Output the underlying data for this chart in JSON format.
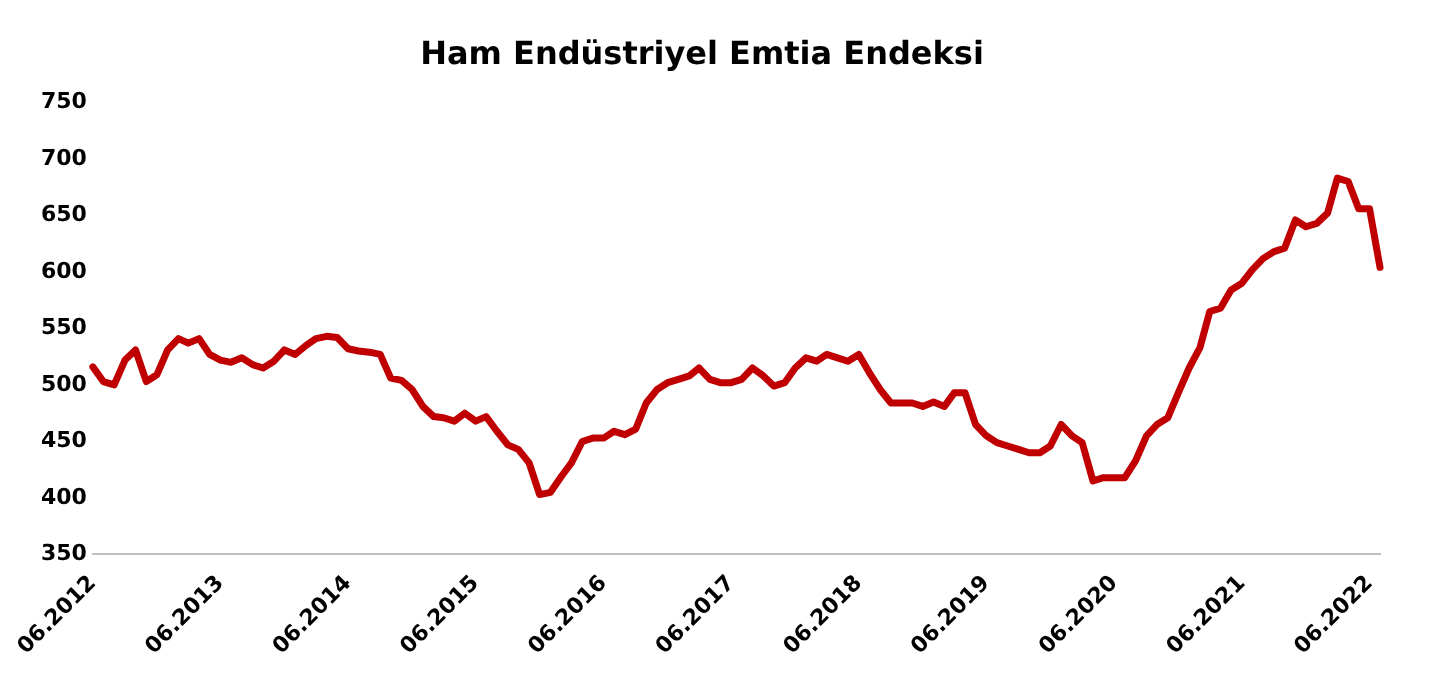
{
  "chart_data": {
    "type": "line",
    "title": "Ham Endüstriyel Emtia Endeksi",
    "x": [
      "2012-06",
      "2012-07",
      "2012-08",
      "2012-09",
      "2012-10",
      "2012-11",
      "2012-12",
      "2013-01",
      "2013-02",
      "2013-03",
      "2013-04",
      "2013-05",
      "2013-06",
      "2013-07",
      "2013-08",
      "2013-09",
      "2013-10",
      "2013-11",
      "2013-12",
      "2014-01",
      "2014-02",
      "2014-03",
      "2014-04",
      "2014-05",
      "2014-06",
      "2014-07",
      "2014-08",
      "2014-09",
      "2014-10",
      "2014-11",
      "2014-12",
      "2015-01",
      "2015-02",
      "2015-03",
      "2015-04",
      "2015-05",
      "2015-06",
      "2015-07",
      "2015-08",
      "2015-09",
      "2015-10",
      "2015-11",
      "2015-12",
      "2016-01",
      "2016-02",
      "2016-03",
      "2016-04",
      "2016-05",
      "2016-06",
      "2016-07",
      "2016-08",
      "2016-09",
      "2016-10",
      "2016-11",
      "2016-12",
      "2017-01",
      "2017-02",
      "2017-03",
      "2017-04",
      "2017-05",
      "2017-06",
      "2017-07",
      "2017-08",
      "2017-09",
      "2017-10",
      "2017-11",
      "2017-12",
      "2018-01",
      "2018-02",
      "2018-03",
      "2018-04",
      "2018-05",
      "2018-06",
      "2018-07",
      "2018-08",
      "2018-09",
      "2018-10",
      "2018-11",
      "2018-12",
      "2019-01",
      "2019-02",
      "2019-03",
      "2019-04",
      "2019-05",
      "2019-06",
      "2019-07",
      "2019-08",
      "2019-09",
      "2019-10",
      "2019-11",
      "2019-12",
      "2020-01",
      "2020-02",
      "2020-03",
      "2020-04",
      "2020-05",
      "2020-06",
      "2020-07",
      "2020-08",
      "2020-09",
      "2020-10",
      "2020-11",
      "2020-12",
      "2021-01",
      "2021-02",
      "2021-03",
      "2021-04",
      "2021-05",
      "2021-06",
      "2021-07",
      "2021-08",
      "2021-09",
      "2021-10",
      "2021-11",
      "2021-12",
      "2022-01",
      "2022-02",
      "2022-03",
      "2022-04",
      "2022-05",
      "2022-06",
      "2022-07"
    ],
    "series": [
      {
        "color": "#c00000",
        "values": [
          516,
          503,
          500,
          522,
          531,
          503,
          509,
          531,
          541,
          537,
          541,
          527,
          522,
          520,
          524,
          518,
          515,
          521,
          531,
          527,
          535,
          541,
          543,
          542,
          532,
          530,
          529,
          527,
          506,
          504,
          496,
          481,
          472,
          471,
          468,
          475,
          468,
          472,
          459,
          447,
          443,
          431,
          403,
          405,
          419,
          431,
          450,
          453,
          453,
          459,
          456,
          461,
          484,
          496,
          502,
          505,
          508,
          515,
          505,
          502,
          502,
          505,
          515,
          508,
          499,
          502,
          515,
          524,
          521,
          527,
          524,
          521,
          527,
          511,
          496,
          484,
          484,
          484,
          481,
          485,
          481,
          493,
          493,
          465,
          455,
          449,
          446,
          443,
          440,
          440,
          446,
          465,
          455,
          449,
          415,
          418,
          418,
          418,
          433,
          455,
          465,
          471,
          493,
          515,
          533,
          565,
          568,
          584,
          590,
          602,
          612,
          618,
          621,
          646,
          640,
          643,
          652,
          683,
          680,
          656,
          656,
          604
        ]
      }
    ],
    "xlim": [
      "2012-06",
      "2022-07"
    ],
    "xticks": [
      {
        "value": "2012-06",
        "label": "06.2012"
      },
      {
        "value": "2013-06",
        "label": "06.2013"
      },
      {
        "value": "2014-06",
        "label": "06.2014"
      },
      {
        "value": "2015-06",
        "label": "06.2015"
      },
      {
        "value": "2016-06",
        "label": "06.2016"
      },
      {
        "value": "2017-06",
        "label": "06.2017"
      },
      {
        "value": "2018-06",
        "label": "06.2018"
      },
      {
        "value": "2019-06",
        "label": "06.2019"
      },
      {
        "value": "2020-06",
        "label": "06.2020"
      },
      {
        "value": "2021-06",
        "label": "06.2021"
      },
      {
        "value": "2022-06",
        "label": "06.2022"
      }
    ],
    "ylim": [
      350,
      750
    ],
    "yticks": [
      350,
      400,
      450,
      500,
      550,
      600,
      650,
      700,
      750
    ],
    "grid": false,
    "legend": false,
    "marker": "none",
    "line_style": "solid"
  }
}
